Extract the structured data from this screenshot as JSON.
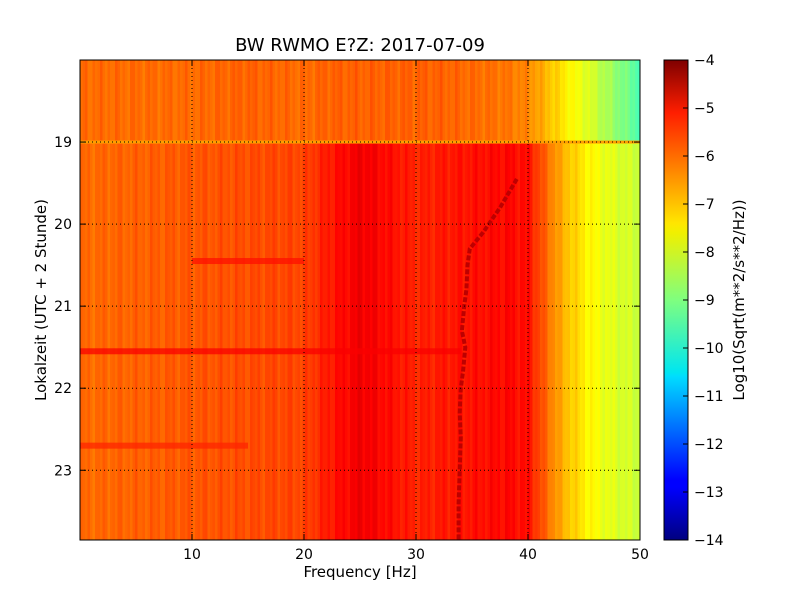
{
  "chart_data": {
    "type": "heatmap",
    "title": "BW RWMO E?Z: 2017-07-09",
    "xlabel": "Frequency [Hz]",
    "ylabel": "Lokalzeit (UTC + 2 Stunde)",
    "xlim": [
      0,
      50
    ],
    "ylim": [
      18.0,
      23.85
    ],
    "y_inverted": true,
    "x_ticks": [
      10,
      20,
      30,
      40,
      50
    ],
    "y_ticks": [
      19,
      20,
      21,
      22,
      23
    ],
    "grid": true,
    "colormap": "jet",
    "colorbar": {
      "label": "Log10(Sqrt(m**2/s**2/Hz))",
      "range": [
        -14,
        -4
      ],
      "ticks": [
        -4,
        -5,
        -6,
        -7,
        -8,
        -9,
        -10,
        -11,
        -12,
        -13,
        -14
      ]
    },
    "level_profile": {
      "freq_hz": [
        0,
        5,
        10,
        15,
        20,
        22,
        25,
        28,
        30,
        32,
        35,
        38,
        40,
        41,
        42,
        43,
        44,
        45,
        46,
        47,
        48,
        49,
        50
      ],
      "before_19h": [
        -6.3,
        -6.3,
        -6.3,
        -6.2,
        -6.3,
        -6.2,
        -6.2,
        -6.2,
        -6.2,
        -6.2,
        -6.3,
        -6.4,
        -6.6,
        -6.9,
        -7.2,
        -7.5,
        -7.8,
        -8.0,
        -8.3,
        -8.6,
        -8.9,
        -9.2,
        -9.5
      ],
      "after_19h": [
        -6.3,
        -6.2,
        -6.1,
        -6.0,
        -5.9,
        -5.5,
        -5.1,
        -5.4,
        -5.6,
        -5.5,
        -5.4,
        -5.3,
        -5.4,
        -6.0,
        -6.5,
        -7.0,
        -7.3,
        -7.6,
        -7.8,
        -8.0,
        -8.1,
        -8.2,
        -8.3
      ]
    },
    "features": [
      {
        "kind": "horizontal_line",
        "time": 19.0,
        "from_hz": 0,
        "to_hz": 50,
        "value": -6.8
      },
      {
        "kind": "tone",
        "points": [
          [
            39.0,
            19.45
          ],
          [
            37.5,
            19.8
          ],
          [
            36.0,
            20.1
          ],
          [
            34.8,
            20.3
          ],
          [
            34.6,
            20.5
          ],
          [
            34.5,
            20.8
          ],
          [
            34.3,
            21.0
          ],
          [
            34.1,
            21.3
          ],
          [
            34.4,
            21.5
          ],
          [
            34.2,
            21.8
          ],
          [
            34.0,
            22.0
          ],
          [
            33.9,
            22.3
          ],
          [
            34.0,
            22.6
          ],
          [
            33.9,
            23.0
          ],
          [
            33.8,
            23.4
          ],
          [
            33.8,
            23.85
          ]
        ],
        "value": -4.6
      },
      {
        "kind": "horizontal_band",
        "time": 21.55,
        "from_hz": 0,
        "to_hz": 34,
        "value": -5.2
      },
      {
        "kind": "horizontal_band",
        "time": 20.45,
        "from_hz": 10,
        "to_hz": 20,
        "value": -5.4
      },
      {
        "kind": "horizontal_band",
        "time": 22.7,
        "from_hz": 0,
        "to_hz": 15,
        "value": -5.6
      }
    ]
  }
}
